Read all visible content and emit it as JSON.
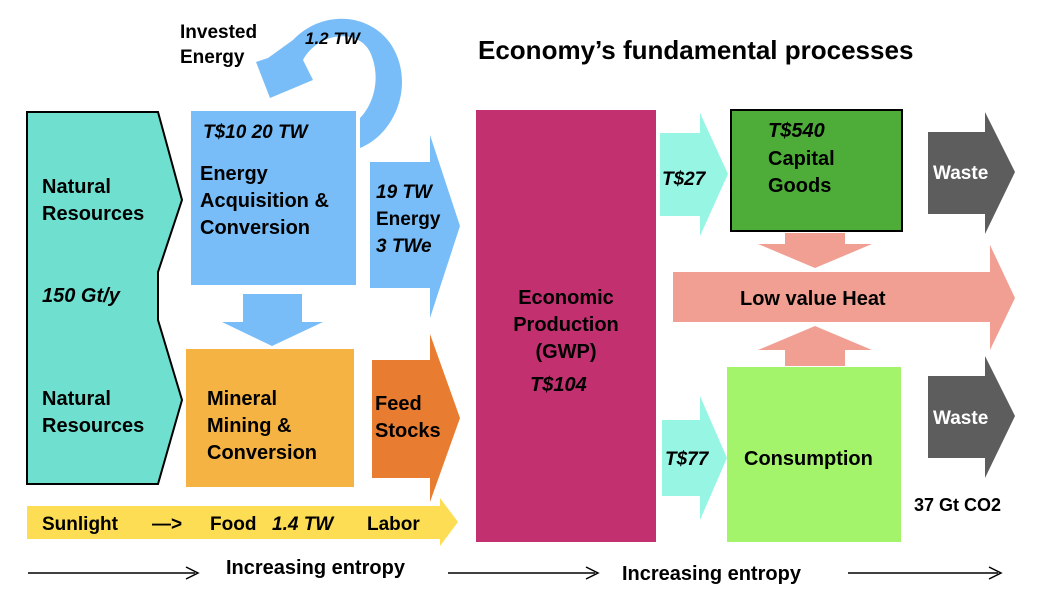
{
  "title": "Economy’s fundamental processes",
  "invested_energy": {
    "label_line1": "Invested",
    "label_line2": "Energy",
    "value": "1.2 TW"
  },
  "natural_resources_top": {
    "line1": "Natural",
    "line2": "Resources"
  },
  "natural_resources_rate": "150 Gt/y",
  "natural_resources_bottom": {
    "line1": "Natural",
    "line2": "Resources"
  },
  "energy_box": {
    "value": "T$10 20 TW",
    "line1": "Energy",
    "line2": "Acquisition &",
    "line3": "Conversion"
  },
  "energy_arrow": {
    "line1": "19 TW",
    "line2": "Energy",
    "line3": "3 TWe"
  },
  "mineral_box": {
    "line1": "Mineral",
    "line2": "Mining &",
    "line3": "Conversion"
  },
  "feed_stocks": {
    "line1": "Feed",
    "line2": "Stocks"
  },
  "sunlight_bar": {
    "sunlight": "Sunlight",
    "arrow": "—>",
    "food": "Food",
    "power": "1.4 TW",
    "labor": "Labor"
  },
  "production_box": {
    "line1": "Economic",
    "line2": "Production",
    "line3": "(GWP)",
    "value": "T$104"
  },
  "capital_flow": "T$27",
  "capital_box": {
    "value": "T$540",
    "line1": "Capital",
    "line2": "Goods"
  },
  "consumption_flow": "T$77",
  "consumption_box": {
    "label": "Consumption"
  },
  "heat_arrow": "Low value Heat",
  "waste_top": "Waste",
  "waste_bottom": "Waste",
  "co2": "37 Gt CO2",
  "entropy_left": "Increasing entropy",
  "entropy_right": "Increasing entropy",
  "colors": {
    "natural": "#6fe0cf",
    "energy": "#78bdf7",
    "mineral": "#f4b342",
    "feed": "#e87c31",
    "sunlight": "#fcdd53",
    "production": "#c2306f",
    "capital_flow": "#97f5e4",
    "capital": "#4ead38",
    "consumption": "#a3f46b",
    "heat": "#f19f92",
    "waste": "#5d5d5d"
  }
}
